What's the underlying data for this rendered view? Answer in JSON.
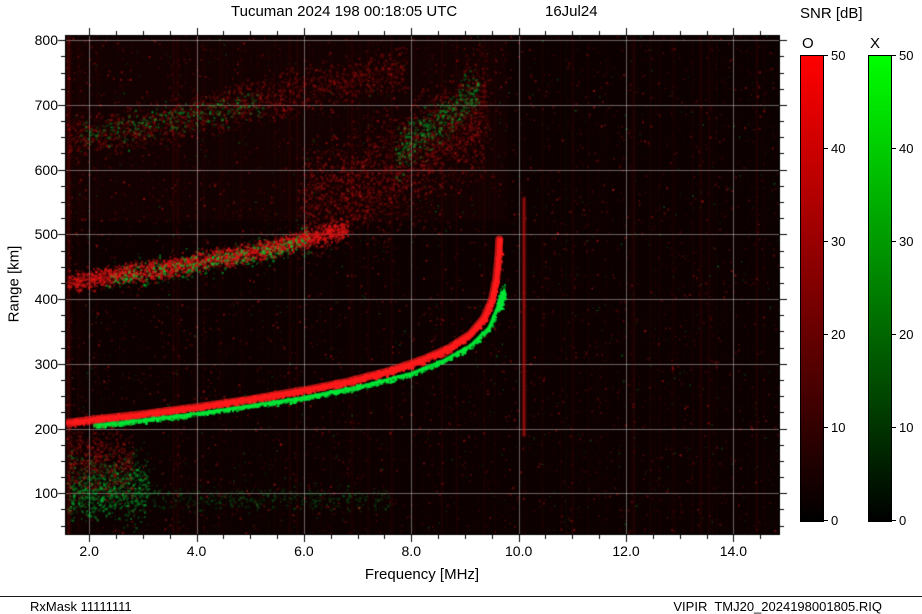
{
  "header": {
    "title": "Tucuman 2024 198 00:18:05 UTC",
    "date": "16Jul24"
  },
  "footer": {
    "left": "RxMask 11111111",
    "right": "VIPIR  TMJ20_2024198001805.RIQ"
  },
  "colorbars": {
    "title": "SNR [dB]",
    "ticks": [
      0,
      10,
      20,
      30,
      40,
      50
    ],
    "bars": [
      {
        "label": "O",
        "color": "#ff0000"
      },
      {
        "label": "X",
        "color": "#00ff00"
      }
    ]
  },
  "chart_data": {
    "type": "heatmap",
    "title": "Tucuman 2024 198 00:18:05 UTC 16Jul24",
    "xlabel": "Frequency [MHz]",
    "ylabel": "Range [km]",
    "xlim": [
      1.55,
      14.85
    ],
    "ylim": [
      37,
      808
    ],
    "snr_range": [
      0,
      50
    ],
    "grid_on": true,
    "grid_color": "rgba(255,255,255,0.38)",
    "background": "#060101",
    "x_ticks": [
      {
        "v": 2,
        "label": "2.0"
      },
      {
        "v": 4,
        "label": "4.0"
      },
      {
        "v": 6,
        "label": "6.0"
      },
      {
        "v": 8,
        "label": "8.0"
      },
      {
        "v": 10,
        "label": "10.0"
      },
      {
        "v": 12,
        "label": "12.0"
      },
      {
        "v": 14,
        "label": "14.0"
      }
    ],
    "y_ticks": [
      {
        "v": 100,
        "label": "100"
      },
      {
        "v": 200,
        "label": "200"
      },
      {
        "v": 300,
        "label": "300"
      },
      {
        "v": 400,
        "label": "400"
      },
      {
        "v": 500,
        "label": "500"
      },
      {
        "v": 600,
        "label": "600"
      },
      {
        "v": 700,
        "label": "700"
      },
      {
        "v": 800,
        "label": "800"
      }
    ],
    "x_minor_step": 0.5,
    "y_minor_step": 25,
    "bands": [
      {
        "name": "F-trace-O",
        "mode": "O",
        "style": "trace",
        "color": "#ff1c1c",
        "width": 8,
        "alpha": 0.95,
        "jitter": 2.5,
        "density": 2500,
        "points": [
          [
            1.6,
            209
          ],
          [
            2.2,
            215
          ],
          [
            3.0,
            222
          ],
          [
            4.0,
            233
          ],
          [
            5.0,
            245
          ],
          [
            6.0,
            259
          ],
          [
            6.8,
            272
          ],
          [
            7.6,
            289
          ],
          [
            8.2,
            306
          ],
          [
            8.7,
            324
          ],
          [
            9.1,
            346
          ],
          [
            9.35,
            370
          ],
          [
            9.5,
            398
          ],
          [
            9.58,
            430
          ],
          [
            9.62,
            462
          ],
          [
            9.64,
            492
          ]
        ]
      },
      {
        "name": "F-trace-X",
        "mode": "X",
        "style": "trace",
        "color": "#00e838",
        "width": 3.5,
        "alpha": 0.92,
        "jitter": 1.6,
        "density": 1400,
        "points": [
          [
            2.1,
            205
          ],
          [
            3.0,
            213
          ],
          [
            4.0,
            223
          ],
          [
            5.0,
            235
          ],
          [
            6.0,
            248
          ],
          [
            7.0,
            264
          ],
          [
            8.0,
            285
          ],
          [
            8.6,
            305
          ],
          [
            9.1,
            328
          ],
          [
            9.45,
            356
          ],
          [
            9.6,
            386
          ],
          [
            9.69,
            410
          ]
        ]
      },
      {
        "name": "second-hop-O",
        "mode": "O",
        "style": "speckle",
        "color": "#e01616",
        "alpha": 0.6,
        "jitter": 7,
        "density": 3000,
        "points": [
          [
            1.6,
            427
          ],
          [
            2.4,
            436
          ],
          [
            3.2,
            446
          ],
          [
            4.0,
            458
          ],
          [
            4.8,
            470
          ],
          [
            5.6,
            484
          ],
          [
            6.2,
            497
          ],
          [
            6.8,
            511
          ]
        ]
      },
      {
        "name": "second-hop-X",
        "mode": "X",
        "style": "speckle",
        "color": "#00d035",
        "alpha": 0.55,
        "jitter": 9,
        "density": 550,
        "points": [
          [
            2.3,
            432
          ],
          [
            3.1,
            442
          ],
          [
            3.9,
            454
          ],
          [
            4.7,
            466
          ],
          [
            5.5,
            480
          ],
          [
            6.1,
            492
          ]
        ]
      },
      {
        "name": "spread-F-O",
        "mode": "O",
        "style": "speckle",
        "color": "#c01414",
        "alpha": 0.32,
        "jitter": 38,
        "density": 3200,
        "points": [
          [
            5.9,
            540
          ],
          [
            6.8,
            568
          ],
          [
            7.6,
            598
          ],
          [
            8.3,
            632
          ],
          [
            8.9,
            666
          ],
          [
            9.4,
            700
          ]
        ]
      },
      {
        "name": "spread-F-X",
        "mode": "X",
        "style": "speckle",
        "color": "#00c035",
        "alpha": 0.4,
        "jitter": 16,
        "density": 500,
        "points": [
          [
            7.7,
            628
          ],
          [
            8.3,
            662
          ],
          [
            8.9,
            698
          ],
          [
            9.25,
            728
          ]
        ]
      },
      {
        "name": "multi-hop-O",
        "mode": "O",
        "style": "speckle",
        "color": "#c01414",
        "alpha": 0.32,
        "jitter": 15,
        "density": 2000,
        "points": [
          [
            1.6,
            648
          ],
          [
            2.4,
            660
          ],
          [
            3.2,
            672
          ],
          [
            4.0,
            686
          ],
          [
            4.8,
            700
          ],
          [
            5.6,
            716
          ],
          [
            6.4,
            731
          ],
          [
            7.2,
            746
          ],
          [
            7.9,
            758
          ]
        ]
      },
      {
        "name": "multi-hop-X",
        "mode": "X",
        "style": "speckle",
        "color": "#00c035",
        "alpha": 0.42,
        "jitter": 10,
        "density": 350,
        "points": [
          [
            1.8,
            652
          ],
          [
            2.7,
            666
          ],
          [
            3.6,
            680
          ],
          [
            4.5,
            694
          ],
          [
            5.2,
            706
          ]
        ]
      },
      {
        "name": "asymptote-X-blob",
        "mode": "X",
        "style": "speckle",
        "color": "#00e838",
        "alpha": 0.85,
        "jitter": 5,
        "density": 220,
        "points": [
          [
            9.64,
            392
          ],
          [
            9.72,
            412
          ]
        ]
      },
      {
        "name": "E-region-X",
        "mode": "X",
        "style": "speckle",
        "color": "#00c035",
        "alpha": 0.45,
        "jitter": 22,
        "density": 800,
        "points": [
          [
            1.6,
            105
          ],
          [
            2.1,
            110
          ],
          [
            2.6,
            112
          ],
          [
            3.1,
            108
          ]
        ]
      },
      {
        "name": "E-region-O",
        "mode": "O",
        "style": "speckle",
        "color": "#c01414",
        "alpha": 0.35,
        "jitter": 26,
        "density": 700,
        "points": [
          [
            1.6,
            150
          ],
          [
            2.2,
            152
          ],
          [
            2.8,
            148
          ]
        ]
      },
      {
        "name": "E-row-X",
        "mode": "X",
        "style": "speckle",
        "color": "#00a830",
        "alpha": 0.25,
        "jitter": 9,
        "density": 600,
        "points": [
          [
            1.6,
            93
          ],
          [
            3.0,
            94
          ],
          [
            4.6,
            93
          ],
          [
            6.2,
            91
          ],
          [
            7.6,
            90
          ]
        ]
      }
    ],
    "rfi_lines": [
      {
        "f": 10.1,
        "r": [
          190,
          555
        ],
        "color": "#dd1414",
        "alpha": 0.5,
        "width": 2.5
      },
      {
        "f": 1.62,
        "r": [
          37,
          808
        ],
        "color": "#bb1111",
        "alpha": 0.18,
        "width": 3
      },
      {
        "f": 12.15,
        "r": [
          37,
          808
        ],
        "color": "#aa1111",
        "alpha": 0.1,
        "width": 2
      },
      {
        "f": 13.55,
        "r": [
          37,
          808
        ],
        "color": "#aa1111",
        "alpha": 0.08,
        "width": 2
      },
      {
        "f": 6.9,
        "r": [
          37,
          808
        ],
        "color": "#aa1111",
        "alpha": 0.08,
        "width": 2
      }
    ],
    "noise": {
      "seed": 1337,
      "red_dots": 9000,
      "green_dots": 1700,
      "striations": 230
    }
  }
}
